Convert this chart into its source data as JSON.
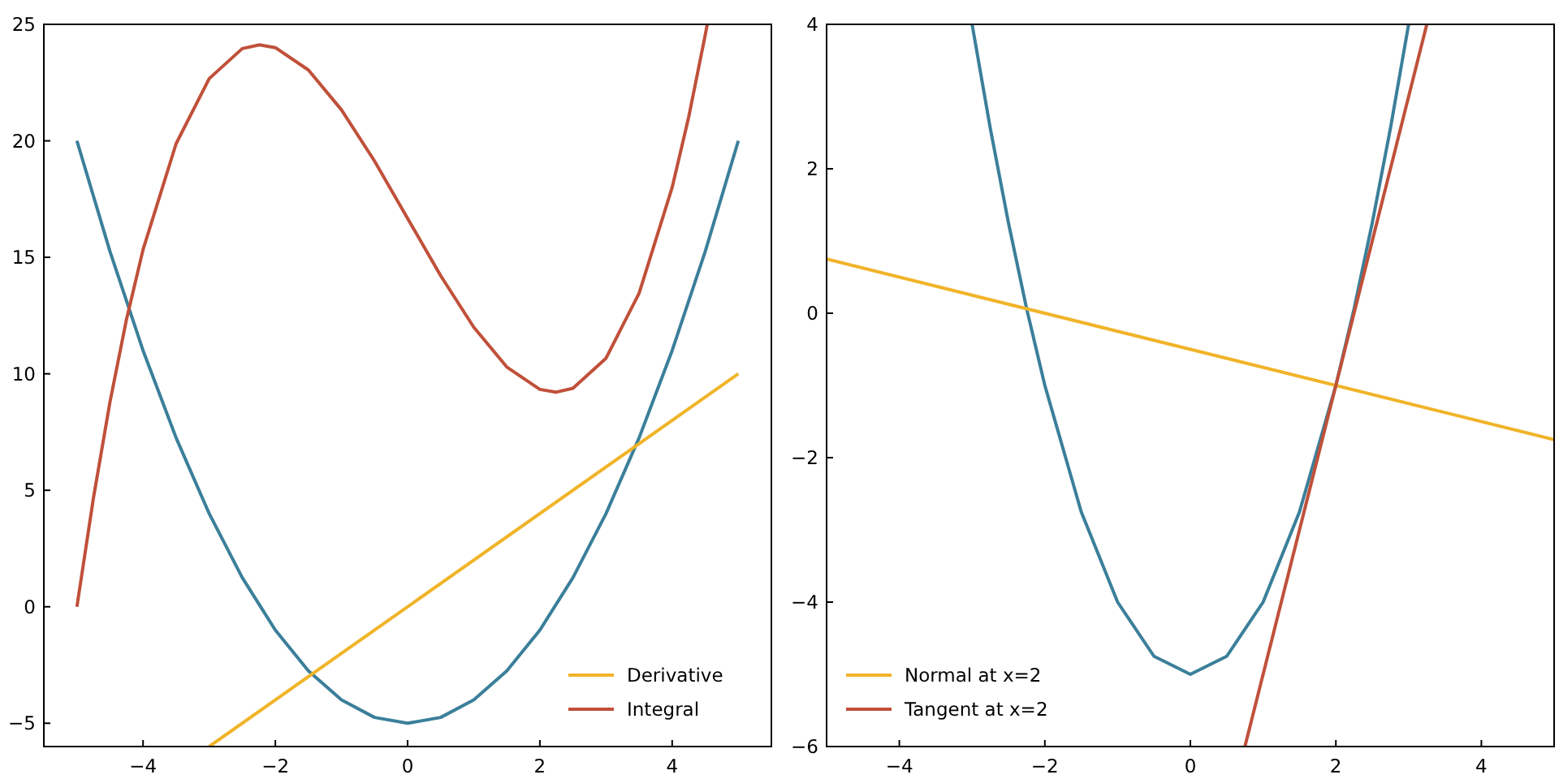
{
  "chart_data": [
    {
      "type": "line",
      "xlim": [
        -5.5,
        5.5
      ],
      "ylim": [
        -6,
        25
      ],
      "xticks": [
        -4,
        -2,
        0,
        2,
        4
      ],
      "yticks": [
        -5,
        0,
        5,
        10,
        15,
        20,
        25
      ],
      "grid": false,
      "legend": "bottom right",
      "series": [
        {
          "color": "#3b7f9a",
          "x": [
            -5,
            -4.5,
            -4,
            -3.5,
            -3,
            -2.5,
            -2,
            -1.5,
            -1,
            -0.5,
            0,
            0.5,
            1,
            1.5,
            2,
            2.5,
            3,
            3.5,
            4,
            4.5,
            5
          ],
          "values": [
            20,
            15.25,
            11,
            7.25,
            4,
            1.25,
            -1,
            -2.75,
            -4,
            -4.75,
            -5,
            -4.75,
            -4,
            -2.75,
            -1,
            1.25,
            4,
            7.25,
            11,
            15.25,
            20
          ]
        },
        {
          "name": "Derivative",
          "color": "#f0b429",
          "x": [
            -3,
            5
          ],
          "values": [
            -6,
            10
          ]
        },
        {
          "name": "Integral",
          "color": "#c0503a",
          "x": [
            -5,
            -4.75,
            -4.5,
            -4.25,
            -4,
            -3.5,
            -3,
            -2.5,
            -2.24,
            -2,
            -1.5,
            -1,
            -0.5,
            0,
            0.5,
            1,
            1.5,
            2,
            2.24,
            2.5,
            3,
            3.5,
            4,
            4.25,
            4.5,
            4.53
          ],
          "values": [
            0,
            4.67,
            8.79,
            12.34,
            15.33,
            19.88,
            22.67,
            23.96,
            24.12,
            24,
            23.04,
            21.33,
            19.13,
            16.67,
            14.21,
            12,
            10.29,
            9.33,
            9.21,
            9.38,
            10.67,
            13.46,
            18,
            21.02,
            24.54,
            25
          ]
        }
      ]
    },
    {
      "type": "line",
      "xlim": [
        -5,
        5
      ],
      "ylim": [
        -6,
        4
      ],
      "xticks": [
        -4,
        -2,
        0,
        2,
        4
      ],
      "yticks": [
        -6,
        -4,
        -2,
        0,
        2,
        4
      ],
      "grid": false,
      "legend": "bottom left",
      "series": [
        {
          "color": "#3b7f9a",
          "x": [
            -3,
            -2.75,
            -2.5,
            -2.25,
            -2,
            -1.5,
            -1,
            -0.5,
            0,
            0.5,
            1,
            1.5,
            2,
            2.25,
            2.5,
            2.75,
            3
          ],
          "values": [
            4,
            2.56,
            1.25,
            0.06,
            -1,
            -2.75,
            -4,
            -4.75,
            -5,
            -4.75,
            -4,
            -2.75,
            -1,
            0.06,
            1.25,
            2.56,
            4
          ]
        },
        {
          "name": "Normal at x=2",
          "color": "#f0b429",
          "x": [
            -5,
            5
          ],
          "values": [
            0.75,
            -1.75
          ]
        },
        {
          "name": "Tangent at x=2",
          "color": "#c0503a",
          "x": [
            0.75,
            3.25
          ],
          "values": [
            -6,
            4
          ]
        }
      ]
    }
  ]
}
